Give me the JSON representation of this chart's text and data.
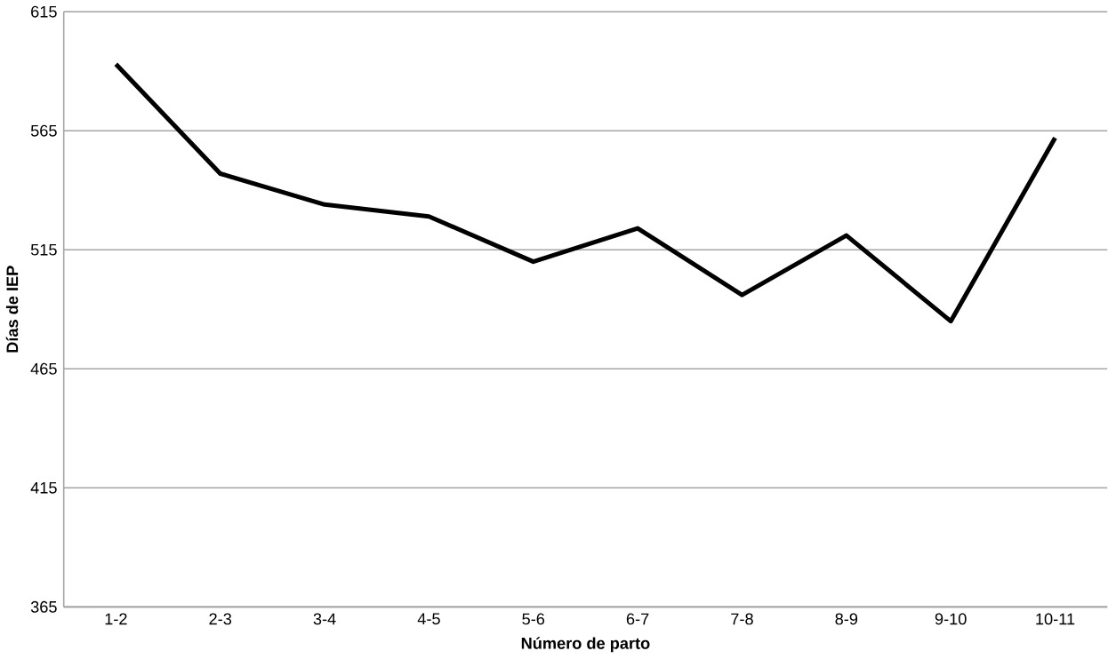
{
  "chart_data": {
    "type": "line",
    "xlabel": "Número de parto",
    "ylabel": "Días de IEP",
    "categories": [
      "1-2",
      "2-3",
      "3-4",
      "4-5",
      "5-6",
      "6-7",
      "7-8",
      "8-9",
      "9-10",
      "10-11"
    ],
    "values": [
      593,
      547,
      534,
      529,
      510,
      524,
      496,
      521,
      485,
      562
    ],
    "color": "#000000",
    "ylim": [
      365,
      615
    ],
    "yticks": [
      365,
      415,
      465,
      515,
      565,
      615
    ],
    "grid": "y",
    "marker": "none",
    "line_style": "solid"
  }
}
